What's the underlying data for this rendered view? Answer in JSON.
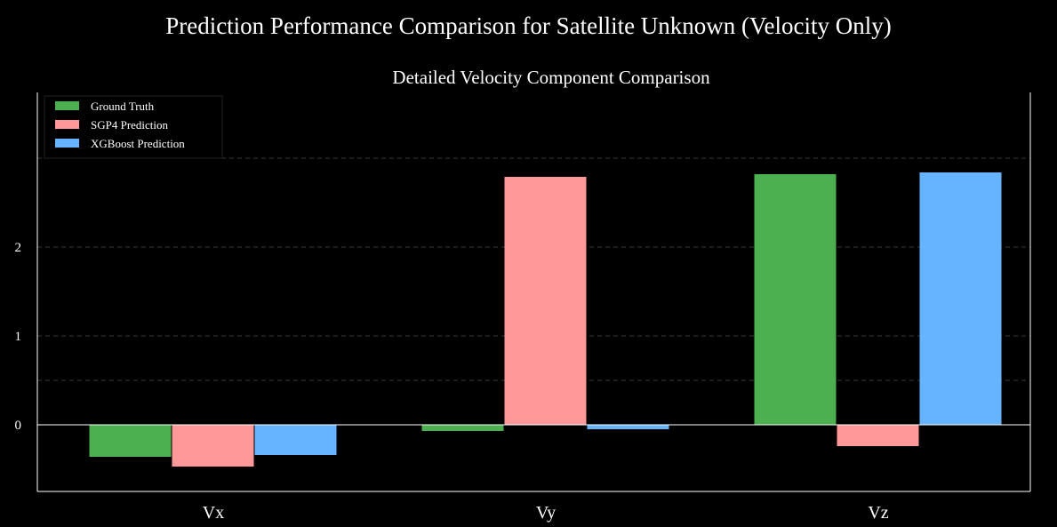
{
  "suptitle": "Prediction Performance Comparison for Satellite Unknown (Velocity Only)",
  "chart_data": {
    "type": "bar",
    "title": "Detailed Velocity Component Comparison",
    "xlabel": "",
    "ylabel": "",
    "categories": [
      "Vx",
      "Vy",
      "Vz"
    ],
    "series": [
      {
        "name": "Ground Truth",
        "color": "#4caf50",
        "values": [
          -0.36,
          -0.07,
          2.82
        ]
      },
      {
        "name": "SGP4 Prediction",
        "color": "#ff9999",
        "values": [
          -0.47,
          2.79,
          -0.24
        ]
      },
      {
        "name": "XGBoost Prediction",
        "color": "#66b3ff",
        "values": [
          -0.34,
          -0.05,
          2.84
        ]
      }
    ],
    "yticks": [
      0,
      1,
      2
    ],
    "ylim": [
      -0.6,
      3.0
    ],
    "grid": true,
    "legend_position": "top-left"
  }
}
